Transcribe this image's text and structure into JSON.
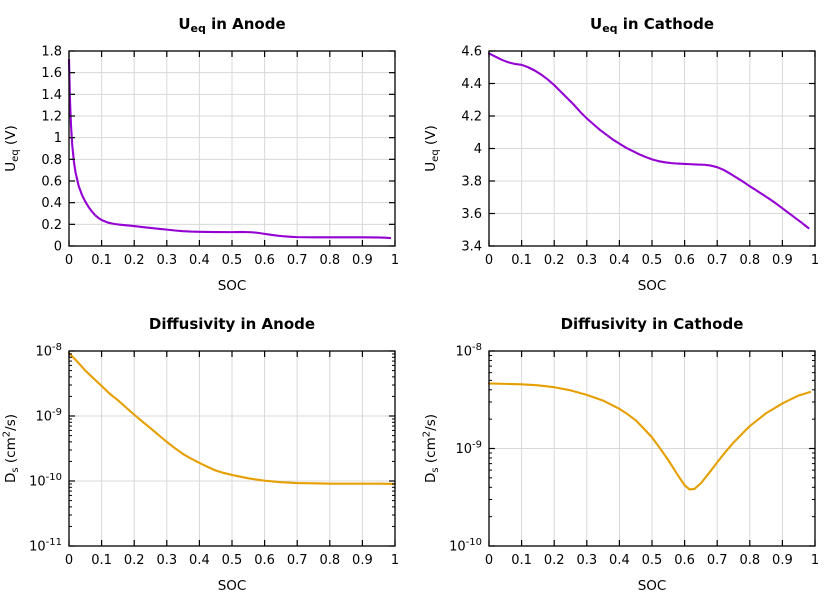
{
  "figure": {
    "background": "#FFFFFF"
  },
  "colors": {
    "grid": "#D8D8D8",
    "axis": "#000000",
    "text": "#000000",
    "purple": "#9400D3",
    "orange": "#E69F00"
  },
  "chart_data": [
    {
      "id": "ueq-anode",
      "type": "line",
      "title": "U_eq in Anode",
      "title_parts": [
        {
          "t": "U"
        },
        {
          "t": "eq",
          "m": "sub"
        },
        {
          "t": " in Anode"
        }
      ],
      "xlabel": "SOC",
      "ylabel": "U_eq (V)",
      "ylabel_parts": [
        {
          "t": "U"
        },
        {
          "t": "eq",
          "m": "sub"
        },
        {
          "t": " (V)"
        }
      ],
      "xlim": [
        0,
        1
      ],
      "ylim": [
        0,
        1.8
      ],
      "yscale": "linear",
      "grid": true,
      "legend": "none",
      "line_color": "#9400D3",
      "xticks": [
        0,
        0.1,
        0.2,
        0.3,
        0.4,
        0.5,
        0.6,
        0.7,
        0.8,
        0.9,
        1
      ],
      "xtick_labels": [
        "0",
        "0.1",
        "0.2",
        "0.3",
        "0.4",
        "0.5",
        "0.6",
        "0.7",
        "0.8",
        "0.9",
        "1"
      ],
      "yticks": [
        0,
        0.2,
        0.4,
        0.6,
        0.8,
        1,
        1.2,
        1.4,
        1.6,
        1.8
      ],
      "ytick_labels": [
        "0",
        "0.2",
        "0.4",
        "0.6",
        "0.8",
        "1",
        "1.2",
        "1.4",
        "1.6",
        "1.8"
      ],
      "x": [
        0,
        0.003,
        0.006,
        0.01,
        0.015,
        0.02,
        0.03,
        0.04,
        0.05,
        0.06,
        0.07,
        0.08,
        0.09,
        0.1,
        0.12,
        0.14,
        0.16,
        0.18,
        0.2,
        0.225,
        0.25,
        0.275,
        0.3,
        0.325,
        0.35,
        0.375,
        0.4,
        0.45,
        0.5,
        0.53,
        0.56,
        0.58,
        0.6,
        0.62,
        0.64,
        0.66,
        0.68,
        0.7,
        0.75,
        0.8,
        0.85,
        0.9,
        0.94,
        0.97,
        0.985
      ],
      "y": [
        1.72,
        1.35,
        1.12,
        0.93,
        0.78,
        0.68,
        0.55,
        0.47,
        0.41,
        0.36,
        0.32,
        0.285,
        0.26,
        0.24,
        0.215,
        0.203,
        0.196,
        0.19,
        0.184,
        0.175,
        0.167,
        0.159,
        0.151,
        0.143,
        0.137,
        0.133,
        0.131,
        0.129,
        0.128,
        0.13,
        0.127,
        0.121,
        0.112,
        0.103,
        0.095,
        0.089,
        0.085,
        0.082,
        0.08,
        0.08,
        0.08,
        0.08,
        0.079,
        0.077,
        0.073
      ]
    },
    {
      "id": "ueq-cathode",
      "type": "line",
      "title": "U_eq in Cathode",
      "title_parts": [
        {
          "t": "U"
        },
        {
          "t": "eq",
          "m": "sub"
        },
        {
          "t": " in Cathode"
        }
      ],
      "xlabel": "SOC",
      "ylabel": "U_eq (V)",
      "ylabel_parts": [
        {
          "t": "U"
        },
        {
          "t": "eq",
          "m": "sub"
        },
        {
          "t": " (V)"
        }
      ],
      "xlim": [
        0,
        1
      ],
      "ylim": [
        3.4,
        4.6
      ],
      "yscale": "linear",
      "grid": true,
      "legend": "none",
      "line_color": "#9400D3",
      "xticks": [
        0,
        0.1,
        0.2,
        0.3,
        0.4,
        0.5,
        0.6,
        0.7,
        0.8,
        0.9,
        1
      ],
      "xtick_labels": [
        "0",
        "0.1",
        "0.2",
        "0.3",
        "0.4",
        "0.5",
        "0.6",
        "0.7",
        "0.8",
        "0.9",
        "1"
      ],
      "yticks": [
        3.4,
        3.6,
        3.8,
        4,
        4.2,
        4.4,
        4.6
      ],
      "ytick_labels": [
        "3.4",
        "3.6",
        "3.8",
        "4",
        "4.2",
        "4.4",
        "4.6"
      ],
      "x": [
        0,
        0.02,
        0.04,
        0.06,
        0.08,
        0.1,
        0.12,
        0.14,
        0.16,
        0.18,
        0.2,
        0.22,
        0.24,
        0.26,
        0.28,
        0.3,
        0.32,
        0.34,
        0.36,
        0.38,
        0.4,
        0.42,
        0.44,
        0.46,
        0.48,
        0.5,
        0.52,
        0.54,
        0.56,
        0.58,
        0.6,
        0.62,
        0.64,
        0.66,
        0.68,
        0.7,
        0.72,
        0.74,
        0.76,
        0.78,
        0.8,
        0.82,
        0.84,
        0.86,
        0.88,
        0.9,
        0.92,
        0.94,
        0.96,
        0.98
      ],
      "y": [
        4.585,
        4.565,
        4.545,
        4.53,
        4.52,
        4.515,
        4.5,
        4.48,
        4.455,
        4.425,
        4.39,
        4.35,
        4.31,
        4.27,
        4.225,
        4.185,
        4.15,
        4.115,
        4.085,
        4.055,
        4.03,
        4.005,
        3.985,
        3.965,
        3.948,
        3.933,
        3.922,
        3.915,
        3.91,
        3.907,
        3.905,
        3.903,
        3.901,
        3.9,
        3.895,
        3.885,
        3.868,
        3.845,
        3.82,
        3.795,
        3.768,
        3.742,
        3.716,
        3.69,
        3.662,
        3.632,
        3.602,
        3.572,
        3.542,
        3.51
      ]
    },
    {
      "id": "diffusivity-anode",
      "type": "line",
      "title": "Diffusivity in Anode",
      "title_parts": [
        {
          "t": "Diffusivity in Anode"
        }
      ],
      "xlabel": "SOC",
      "ylabel": "D_s (cm^2/s)",
      "ylabel_parts": [
        {
          "t": "D"
        },
        {
          "t": "s",
          "m": "sub"
        },
        {
          "t": " (cm"
        },
        {
          "t": "2",
          "m": "sup"
        },
        {
          "t": "/s)"
        }
      ],
      "xlim": [
        0,
        1
      ],
      "ylim": [
        1e-11,
        1e-08
      ],
      "yscale": "log",
      "grid": true,
      "legend": "none",
      "line_color": "#E69F00",
      "xticks": [
        0,
        0.1,
        0.2,
        0.3,
        0.4,
        0.5,
        0.6,
        0.7,
        0.8,
        0.9,
        1
      ],
      "xtick_labels": [
        "0",
        "0.1",
        "0.2",
        "0.3",
        "0.4",
        "0.5",
        "0.6",
        "0.7",
        "0.8",
        "0.9",
        "1"
      ],
      "yticks": [
        1e-11,
        1e-10,
        1e-09,
        1e-08
      ],
      "ytick_labels": [
        "10^-11",
        "10^-10",
        "10^-9",
        "10^-8"
      ],
      "x": [
        0,
        0.025,
        0.05,
        0.075,
        0.1,
        0.125,
        0.15,
        0.175,
        0.2,
        0.225,
        0.25,
        0.275,
        0.3,
        0.325,
        0.35,
        0.375,
        0.4,
        0.425,
        0.45,
        0.475,
        0.5,
        0.55,
        0.6,
        0.65,
        0.7,
        0.75,
        0.8,
        0.85,
        0.9,
        0.95,
        1
      ],
      "y": [
        9.3e-09,
        6.9e-09,
        5e-09,
        3.8e-09,
        2.9e-09,
        2.2e-09,
        1.75e-09,
        1.35e-09,
        1.05e-09,
        8.2e-10,
        6.5e-10,
        5.1e-10,
        4e-10,
        3.2e-10,
        2.6e-10,
        2.2e-10,
        1.9e-10,
        1.65e-10,
        1.45e-10,
        1.33e-10,
        1.24e-10,
        1.1e-10,
        1.01e-10,
        9.6e-11,
        9.3e-11,
        9.2e-11,
        9.1e-11,
        9.1e-11,
        9.1e-11,
        9.1e-11,
        9e-11
      ]
    },
    {
      "id": "diffusivity-cathode",
      "type": "line",
      "title": "Diffusivity in Cathode",
      "title_parts": [
        {
          "t": "Diffusivity in Cathode"
        }
      ],
      "xlabel": "SOC",
      "ylabel": "D_s (cm^2/s)",
      "ylabel_parts": [
        {
          "t": "D"
        },
        {
          "t": "s",
          "m": "sub"
        },
        {
          "t": " (cm"
        },
        {
          "t": "2",
          "m": "sup"
        },
        {
          "t": "/s)"
        }
      ],
      "xlim": [
        0,
        1
      ],
      "ylim": [
        1e-10,
        1e-08
      ],
      "yscale": "log",
      "grid": true,
      "legend": "none",
      "line_color": "#E69F00",
      "xticks": [
        0,
        0.1,
        0.2,
        0.3,
        0.4,
        0.5,
        0.6,
        0.7,
        0.8,
        0.9,
        1
      ],
      "xtick_labels": [
        "0",
        "0.1",
        "0.2",
        "0.3",
        "0.4",
        "0.5",
        "0.6",
        "0.7",
        "0.8",
        "0.9",
        "1"
      ],
      "yticks": [
        1e-10,
        1e-09,
        1e-08
      ],
      "ytick_labels": [
        "10^-10",
        "10^-9",
        "10^-8"
      ],
      "x": [
        0,
        0.05,
        0.1,
        0.15,
        0.2,
        0.25,
        0.3,
        0.35,
        0.4,
        0.425,
        0.45,
        0.475,
        0.5,
        0.525,
        0.55,
        0.575,
        0.6,
        0.615,
        0.63,
        0.65,
        0.675,
        0.7,
        0.725,
        0.75,
        0.775,
        0.8,
        0.85,
        0.9,
        0.95,
        0.985
      ],
      "y": [
        4.65e-09,
        4.6e-09,
        4.55e-09,
        4.45e-09,
        4.25e-09,
        3.95e-09,
        3.55e-09,
        3.1e-09,
        2.55e-09,
        2.25e-09,
        1.95e-09,
        1.6e-09,
        1.3e-09,
        1e-09,
        7.6e-10,
        5.6e-10,
        4.2e-10,
        3.8e-10,
        3.85e-10,
        4.4e-10,
        5.6e-10,
        7.2e-10,
        9.2e-10,
        1.15e-09,
        1.4e-09,
        1.7e-09,
        2.3e-09,
        2.9e-09,
        3.5e-09,
        3.8e-09
      ]
    }
  ]
}
